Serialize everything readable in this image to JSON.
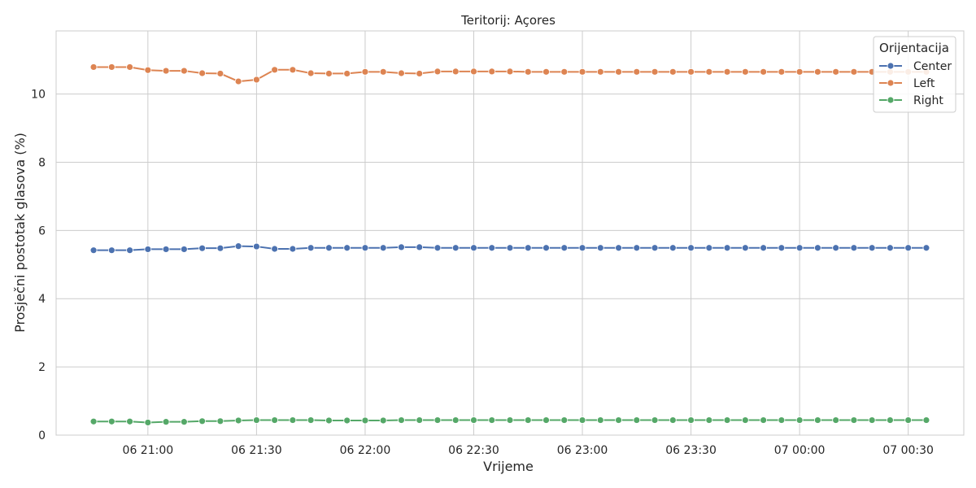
{
  "chart_data": {
    "type": "line",
    "title": "Teritorij: Açores",
    "xlabel": "Vrijeme",
    "ylabel": "Prosječni postotak glasova (%)",
    "x_tick_labels": [
      "06 21:00",
      "06 21:30",
      "06 22:00",
      "06 22:30",
      "06 23:00",
      "06 23:30",
      "07 00:00",
      "07 00:30"
    ],
    "y_tick_labels": [
      "0",
      "2",
      "4",
      "6",
      "8",
      "10"
    ],
    "ylim": [
      0,
      11.85
    ],
    "grid": true,
    "legend": {
      "title": "Orijentacija",
      "position": "top-right"
    },
    "x": [
      "06 20:45",
      "06 20:50",
      "06 20:55",
      "06 21:00",
      "06 21:05",
      "06 21:10",
      "06 21:15",
      "06 21:20",
      "06 21:25",
      "06 21:30",
      "06 21:35",
      "06 21:40",
      "06 21:45",
      "06 21:50",
      "06 21:55",
      "06 22:00",
      "06 22:05",
      "06 22:10",
      "06 22:15",
      "06 22:20",
      "06 22:25",
      "06 22:30",
      "06 22:35",
      "06 22:40",
      "06 22:45",
      "06 22:50",
      "06 22:55",
      "06 23:00",
      "06 23:05",
      "06 23:10",
      "06 23:15",
      "06 23:20",
      "06 23:25",
      "06 23:30",
      "06 23:35",
      "06 23:40",
      "06 23:45",
      "06 23:50",
      "06 23:55",
      "07 00:00",
      "07 00:05",
      "07 00:10",
      "07 00:15",
      "07 00:20",
      "07 00:25",
      "07 00:30",
      "07 00:35"
    ],
    "series": [
      {
        "name": "Center",
        "color": "#4c72b0",
        "values": [
          5.42,
          5.42,
          5.42,
          5.45,
          5.45,
          5.45,
          5.48,
          5.48,
          5.54,
          5.53,
          5.46,
          5.46,
          5.49,
          5.49,
          5.49,
          5.49,
          5.49,
          5.51,
          5.51,
          5.49,
          5.49,
          5.49,
          5.49,
          5.49,
          5.49,
          5.49,
          5.49,
          5.49,
          5.49,
          5.49,
          5.49,
          5.49,
          5.49,
          5.49,
          5.49,
          5.49,
          5.49,
          5.49,
          5.49,
          5.49,
          5.49,
          5.49,
          5.49,
          5.49,
          5.49,
          5.49,
          5.49
        ]
      },
      {
        "name": "Left",
        "color": "#dd8452",
        "values": [
          10.79,
          10.79,
          10.79,
          10.7,
          10.68,
          10.68,
          10.61,
          10.6,
          10.37,
          10.42,
          10.71,
          10.71,
          10.61,
          10.6,
          10.6,
          10.65,
          10.65,
          10.61,
          10.6,
          10.66,
          10.66,
          10.66,
          10.66,
          10.66,
          10.65,
          10.65,
          10.65,
          10.65,
          10.65,
          10.65,
          10.65,
          10.65,
          10.65,
          10.65,
          10.65,
          10.65,
          10.65,
          10.65,
          10.65,
          10.65,
          10.65,
          10.65,
          10.65,
          10.65,
          10.65,
          10.65,
          10.65
        ]
      },
      {
        "name": "Right",
        "color": "#55a868",
        "values": [
          0.4,
          0.4,
          0.4,
          0.37,
          0.39,
          0.39,
          0.41,
          0.41,
          0.43,
          0.44,
          0.44,
          0.44,
          0.44,
          0.43,
          0.43,
          0.43,
          0.43,
          0.44,
          0.44,
          0.44,
          0.44,
          0.44,
          0.44,
          0.44,
          0.44,
          0.44,
          0.44,
          0.44,
          0.44,
          0.44,
          0.44,
          0.44,
          0.44,
          0.44,
          0.44,
          0.44,
          0.44,
          0.44,
          0.44,
          0.44,
          0.44,
          0.44,
          0.44,
          0.44,
          0.44,
          0.44,
          0.44
        ]
      }
    ]
  }
}
